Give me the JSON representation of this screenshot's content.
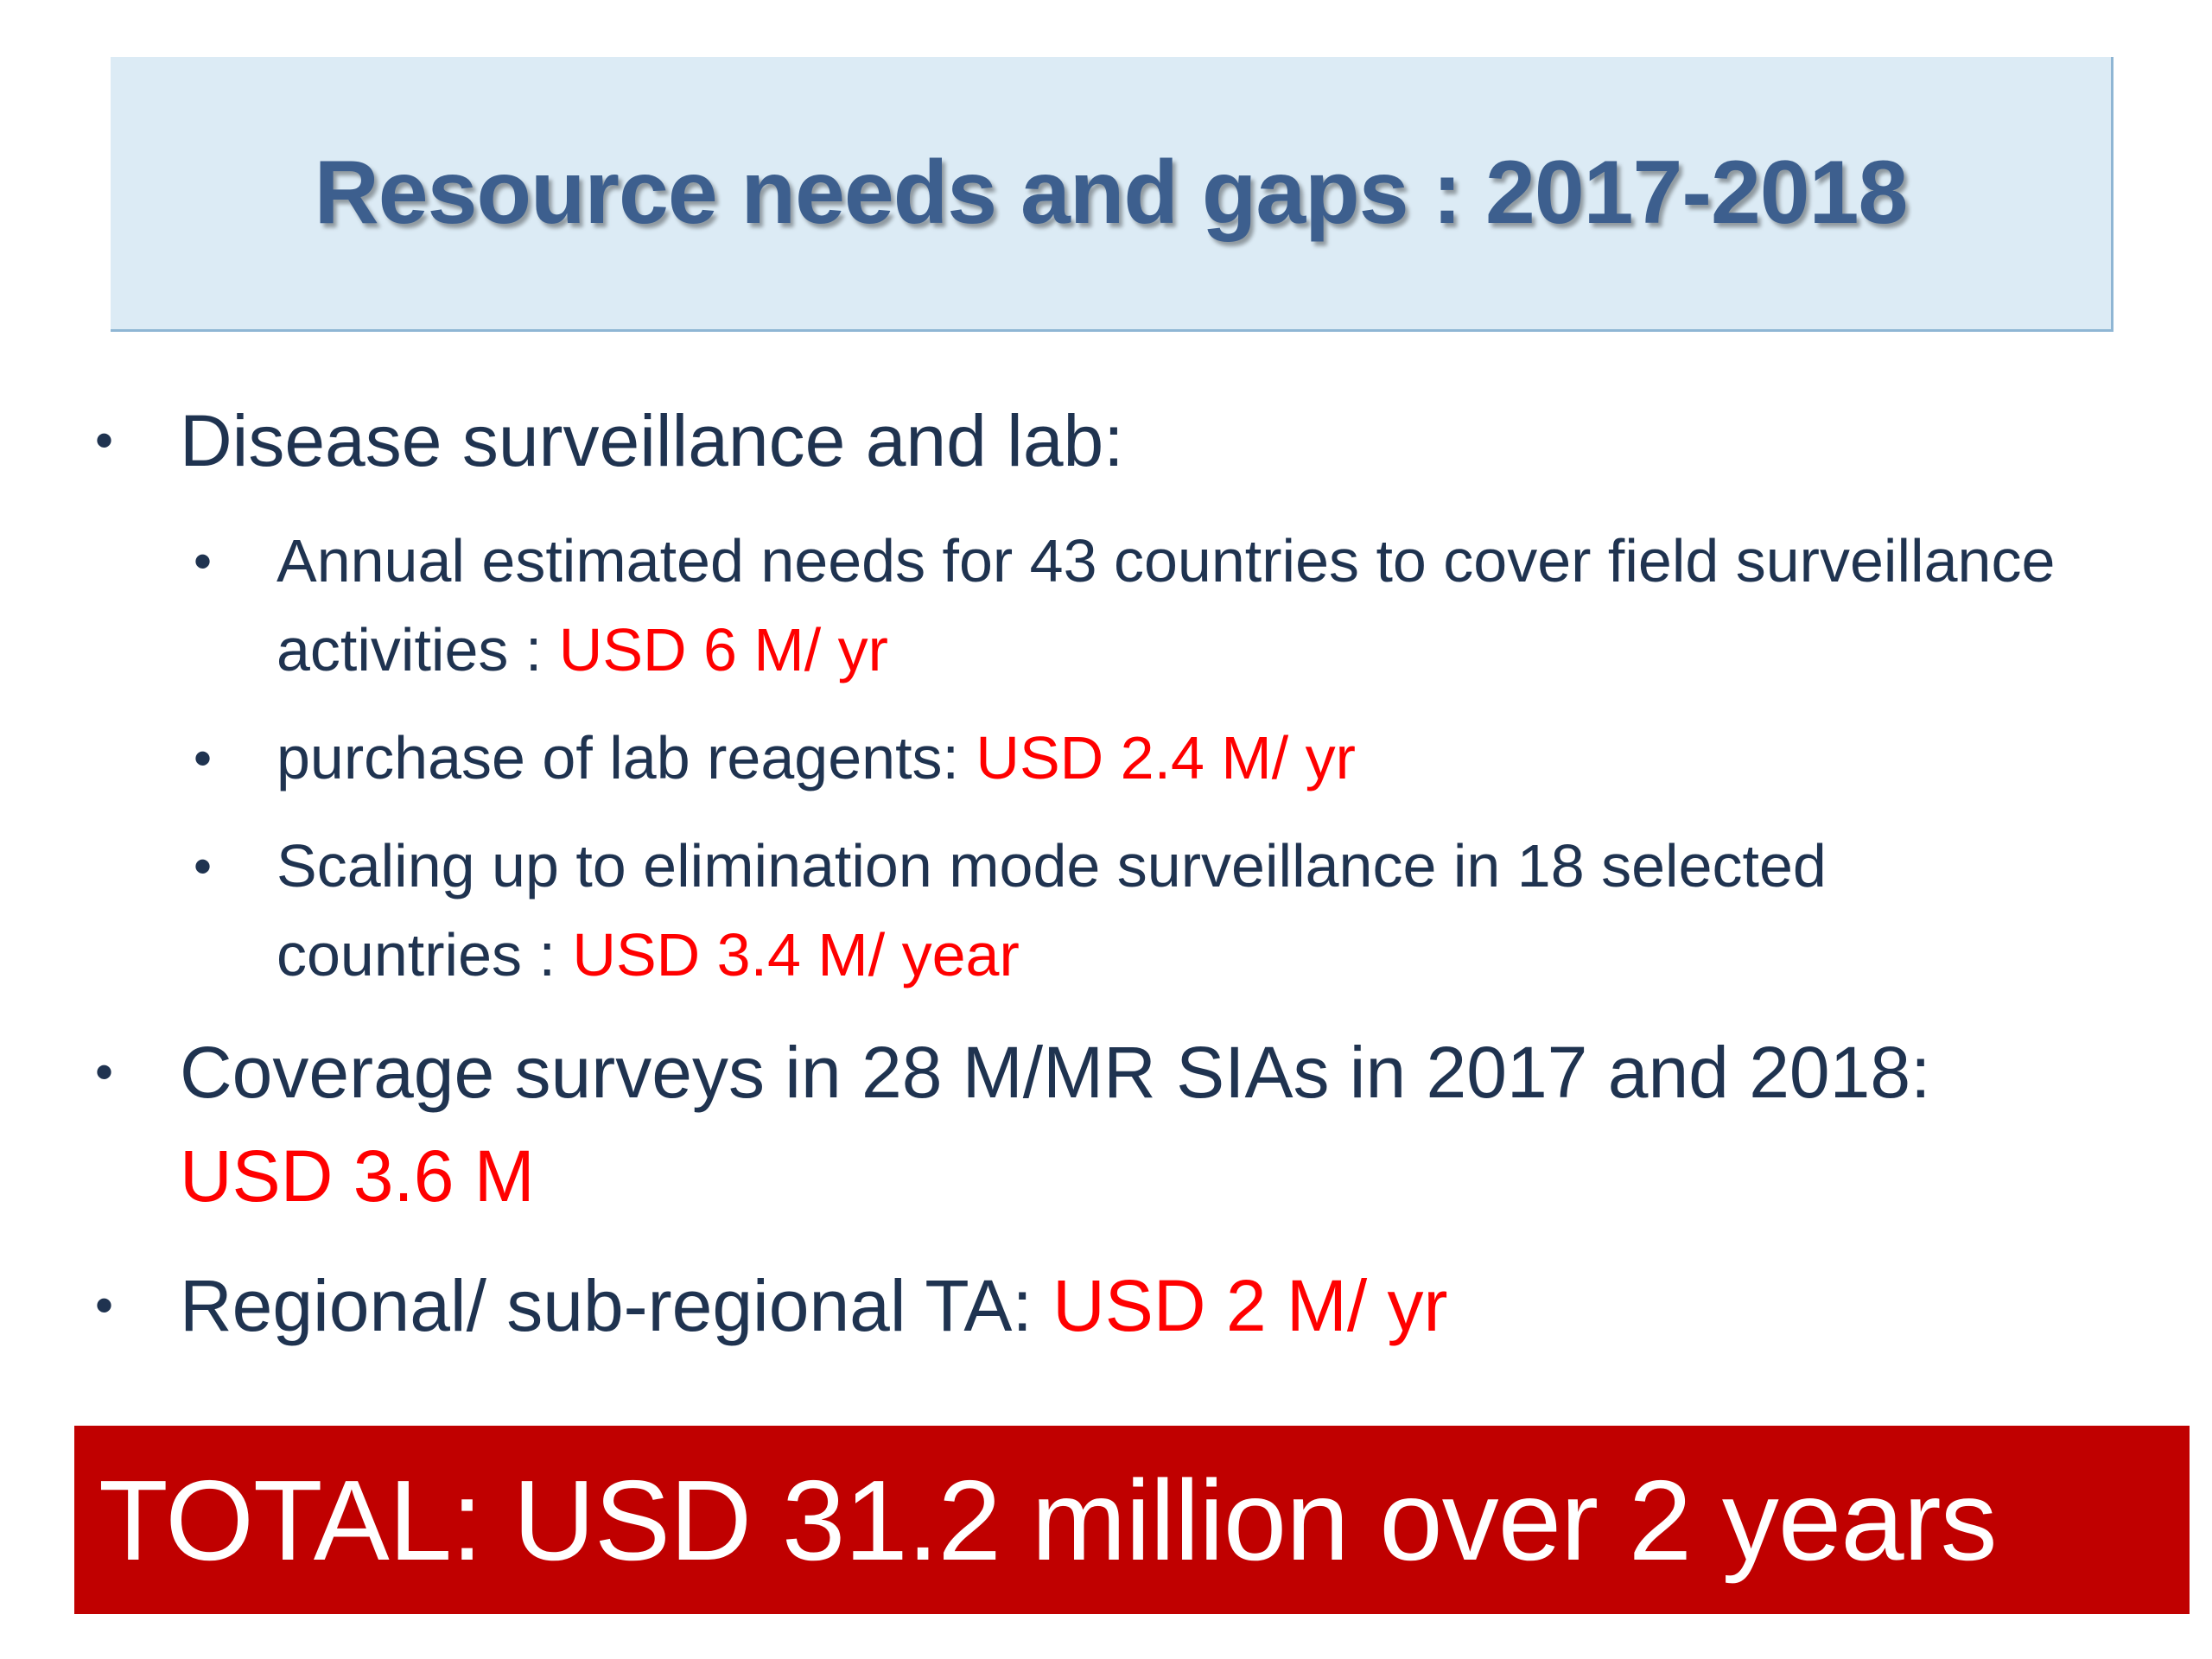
{
  "title": "Resource needs and gaps : 2017-2018",
  "bullet_symbol": "•",
  "items": [
    {
      "text": "Disease surveillance and lab:"
    },
    {
      "text": "Annual estimated needs for 43 countries to cover field surveillance activities : ",
      "amount": "USD 6 M/ yr"
    },
    {
      "text": "purchase of lab reagents: ",
      "amount": "USD 2.4 M/ yr"
    },
    {
      "text": "Scaling up to elimination mode surveillance in 18 selected countries : ",
      "amount": "USD 3.4 M/ year"
    },
    {
      "text": "Coverage surveys in 28 M/MR SIAs in 2017 and 2018:",
      "amount": "USD 3.6 M"
    },
    {
      "text": "Regional/ sub-regional TA: ",
      "amount": "USD 2 M/ yr"
    }
  ],
  "total": "TOTAL: USD 31.2 million over 2 years",
  "colors": {
    "title": "#3d5f8e",
    "title_bg": "#dcebf5",
    "body_text": "#1f3350",
    "amount": "#ff0000",
    "total_bg": "#c00000"
  }
}
